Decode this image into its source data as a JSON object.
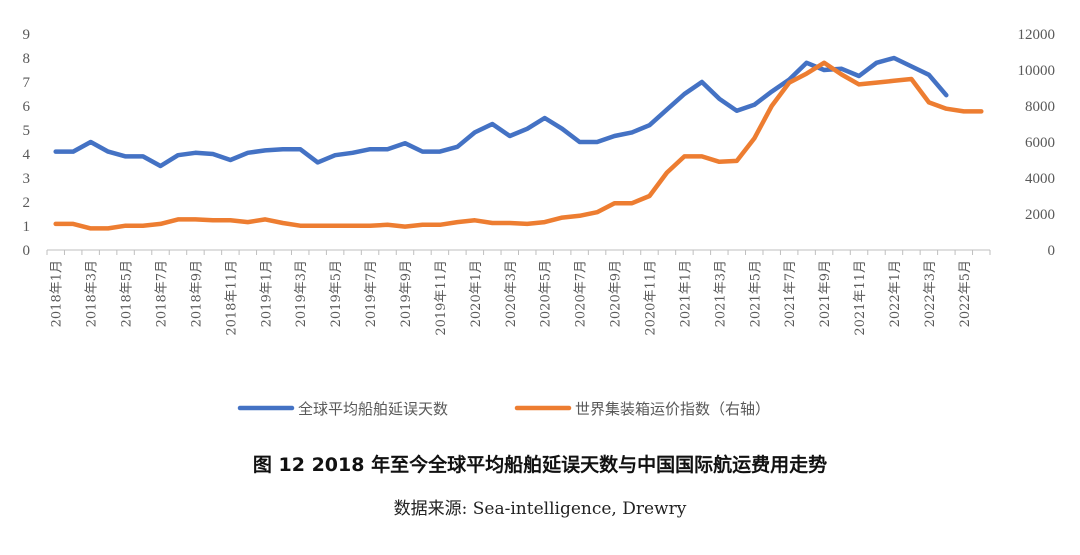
{
  "caption": "图 12 2018 年至今全球平均船舶延误天数与中国国际航运费用走势",
  "source": "数据来源:   Sea-intelligence, Drewry",
  "chart_data": {
    "type": "line",
    "title": "",
    "xlabel": "",
    "ylabel": "",
    "y2label": "",
    "categories": [
      "2018年1月",
      "2018年2月",
      "2018年3月",
      "2018年4月",
      "2018年5月",
      "2018年6月",
      "2018年7月",
      "2018年8月",
      "2018年9月",
      "2018年10月",
      "2018年11月",
      "2018年12月",
      "2019年1月",
      "2019年2月",
      "2019年3月",
      "2019年4月",
      "2019年5月",
      "2019年6月",
      "2019年7月",
      "2019年8月",
      "2019年9月",
      "2019年10月",
      "2019年11月",
      "2019年12月",
      "2020年1月",
      "2020年2月",
      "2020年3月",
      "2020年4月",
      "2020年5月",
      "2020年6月",
      "2020年7月",
      "2020年8月",
      "2020年9月",
      "2020年10月",
      "2020年11月",
      "2020年12月",
      "2021年1月",
      "2021年2月",
      "2021年3月",
      "2021年4月",
      "2021年5月",
      "2021年6月",
      "2021年7月",
      "2021年8月",
      "2021年9月",
      "2021年10月",
      "2021年11月",
      "2021年12月",
      "2022年1月",
      "2022年2月",
      "2022年3月",
      "2022年4月",
      "2022年5月",
      "2022年6月"
    ],
    "tick_labels": [
      "2018年1月",
      "2018年3月",
      "2018年5月",
      "2018年7月",
      "2018年9月",
      "2018年11月",
      "2019年1月",
      "2019年3月",
      "2019年5月",
      "2019年7月",
      "2019年9月",
      "2019年11月",
      "2020年1月",
      "2020年3月",
      "2020年5月",
      "2020年7月",
      "2020年9月",
      "2020年11月",
      "2021年1月",
      "2021年3月",
      "2021年5月",
      "2021年7月",
      "2021年9月",
      "2021年11月",
      "2022年1月",
      "2022年3月",
      "2022年5月"
    ],
    "ylim": [
      0,
      9
    ],
    "y2lim": [
      0,
      12000
    ],
    "yticks": [
      0,
      1,
      2,
      3,
      4,
      5,
      6,
      7,
      8,
      9
    ],
    "y2ticks": [
      0,
      2000,
      4000,
      6000,
      8000,
      10000,
      12000
    ],
    "grid": false,
    "legend_position": "bottom",
    "series": [
      {
        "name": "全球平均船舶延误天数",
        "axis": "left",
        "color": "#4472C4",
        "values": [
          4.1,
          4.1,
          4.5,
          4.1,
          3.9,
          3.9,
          3.5,
          3.95,
          4.05,
          4.0,
          3.75,
          4.05,
          4.15,
          4.2,
          4.2,
          3.65,
          3.95,
          4.05,
          4.2,
          4.2,
          4.45,
          4.1,
          4.1,
          4.3,
          4.9,
          5.25,
          4.75,
          5.05,
          5.5,
          5.05,
          4.5,
          4.5,
          4.75,
          4.9,
          5.2,
          5.85,
          6.5,
          7.0,
          6.3,
          5.8,
          6.05,
          6.6,
          7.1,
          7.8,
          7.5,
          7.55,
          7.25,
          7.8,
          8.0,
          7.65,
          7.3,
          6.45,
          null,
          null
        ]
      },
      {
        "name": "世界集装箱运价指数（右轴）",
        "axis": "right",
        "color": "#ED7D31",
        "values": [
          1450,
          1450,
          1200,
          1200,
          1350,
          1350,
          1450,
          1700,
          1700,
          1650,
          1650,
          1550,
          1700,
          1500,
          1350,
          1350,
          1350,
          1350,
          1350,
          1400,
          1300,
          1400,
          1400,
          1550,
          1650,
          1500,
          1500,
          1450,
          1550,
          1800,
          1900,
          2100,
          2600,
          2600,
          3000,
          4300,
          5200,
          5200,
          4900,
          4950,
          6200,
          8000,
          9300,
          9800,
          10400,
          9750,
          9200,
          9300,
          9400,
          9500,
          8200,
          7850,
          7700,
          7700
        ]
      }
    ]
  }
}
